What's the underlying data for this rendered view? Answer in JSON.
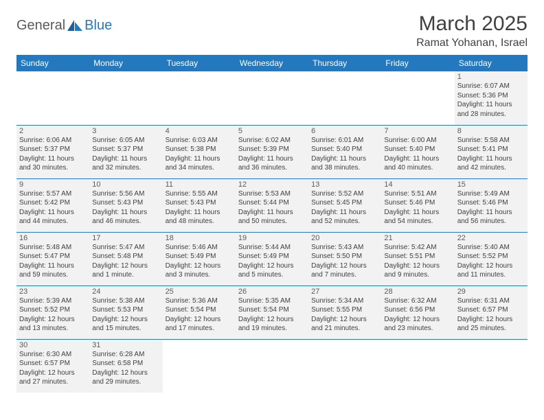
{
  "logo": {
    "text1": "General",
    "text2": "Blue",
    "shape_color": "#2478bd"
  },
  "title": "March 2025",
  "location": "Ramat Yohanan, Israel",
  "colors": {
    "header_bg": "#2478bd",
    "header_fg": "#ffffff",
    "cell_bg": "#f2f2f2",
    "border": "#2478bd",
    "text": "#404040"
  },
  "weekdays": [
    "Sunday",
    "Monday",
    "Tuesday",
    "Wednesday",
    "Thursday",
    "Friday",
    "Saturday"
  ],
  "weeks": [
    [
      null,
      null,
      null,
      null,
      null,
      null,
      {
        "n": "1",
        "sr": "6:07 AM",
        "ss": "5:36 PM",
        "dl": "11 hours and 28 minutes."
      }
    ],
    [
      {
        "n": "2",
        "sr": "6:06 AM",
        "ss": "5:37 PM",
        "dl": "11 hours and 30 minutes."
      },
      {
        "n": "3",
        "sr": "6:05 AM",
        "ss": "5:37 PM",
        "dl": "11 hours and 32 minutes."
      },
      {
        "n": "4",
        "sr": "6:03 AM",
        "ss": "5:38 PM",
        "dl": "11 hours and 34 minutes."
      },
      {
        "n": "5",
        "sr": "6:02 AM",
        "ss": "5:39 PM",
        "dl": "11 hours and 36 minutes."
      },
      {
        "n": "6",
        "sr": "6:01 AM",
        "ss": "5:40 PM",
        "dl": "11 hours and 38 minutes."
      },
      {
        "n": "7",
        "sr": "6:00 AM",
        "ss": "5:40 PM",
        "dl": "11 hours and 40 minutes."
      },
      {
        "n": "8",
        "sr": "5:58 AM",
        "ss": "5:41 PM",
        "dl": "11 hours and 42 minutes."
      }
    ],
    [
      {
        "n": "9",
        "sr": "5:57 AM",
        "ss": "5:42 PM",
        "dl": "11 hours and 44 minutes."
      },
      {
        "n": "10",
        "sr": "5:56 AM",
        "ss": "5:43 PM",
        "dl": "11 hours and 46 minutes."
      },
      {
        "n": "11",
        "sr": "5:55 AM",
        "ss": "5:43 PM",
        "dl": "11 hours and 48 minutes."
      },
      {
        "n": "12",
        "sr": "5:53 AM",
        "ss": "5:44 PM",
        "dl": "11 hours and 50 minutes."
      },
      {
        "n": "13",
        "sr": "5:52 AM",
        "ss": "5:45 PM",
        "dl": "11 hours and 52 minutes."
      },
      {
        "n": "14",
        "sr": "5:51 AM",
        "ss": "5:46 PM",
        "dl": "11 hours and 54 minutes."
      },
      {
        "n": "15",
        "sr": "5:49 AM",
        "ss": "5:46 PM",
        "dl": "11 hours and 56 minutes."
      }
    ],
    [
      {
        "n": "16",
        "sr": "5:48 AM",
        "ss": "5:47 PM",
        "dl": "11 hours and 59 minutes."
      },
      {
        "n": "17",
        "sr": "5:47 AM",
        "ss": "5:48 PM",
        "dl": "12 hours and 1 minute."
      },
      {
        "n": "18",
        "sr": "5:46 AM",
        "ss": "5:49 PM",
        "dl": "12 hours and 3 minutes."
      },
      {
        "n": "19",
        "sr": "5:44 AM",
        "ss": "5:49 PM",
        "dl": "12 hours and 5 minutes."
      },
      {
        "n": "20",
        "sr": "5:43 AM",
        "ss": "5:50 PM",
        "dl": "12 hours and 7 minutes."
      },
      {
        "n": "21",
        "sr": "5:42 AM",
        "ss": "5:51 PM",
        "dl": "12 hours and 9 minutes."
      },
      {
        "n": "22",
        "sr": "5:40 AM",
        "ss": "5:52 PM",
        "dl": "12 hours and 11 minutes."
      }
    ],
    [
      {
        "n": "23",
        "sr": "5:39 AM",
        "ss": "5:52 PM",
        "dl": "12 hours and 13 minutes."
      },
      {
        "n": "24",
        "sr": "5:38 AM",
        "ss": "5:53 PM",
        "dl": "12 hours and 15 minutes."
      },
      {
        "n": "25",
        "sr": "5:36 AM",
        "ss": "5:54 PM",
        "dl": "12 hours and 17 minutes."
      },
      {
        "n": "26",
        "sr": "5:35 AM",
        "ss": "5:54 PM",
        "dl": "12 hours and 19 minutes."
      },
      {
        "n": "27",
        "sr": "5:34 AM",
        "ss": "5:55 PM",
        "dl": "12 hours and 21 minutes."
      },
      {
        "n": "28",
        "sr": "6:32 AM",
        "ss": "6:56 PM",
        "dl": "12 hours and 23 minutes."
      },
      {
        "n": "29",
        "sr": "6:31 AM",
        "ss": "6:57 PM",
        "dl": "12 hours and 25 minutes."
      }
    ],
    [
      {
        "n": "30",
        "sr": "6:30 AM",
        "ss": "6:57 PM",
        "dl": "12 hours and 27 minutes."
      },
      {
        "n": "31",
        "sr": "6:28 AM",
        "ss": "6:58 PM",
        "dl": "12 hours and 29 minutes."
      },
      null,
      null,
      null,
      null,
      null
    ]
  ],
  "labels": {
    "sunrise": "Sunrise:",
    "sunset": "Sunset:",
    "daylight": "Daylight:"
  }
}
